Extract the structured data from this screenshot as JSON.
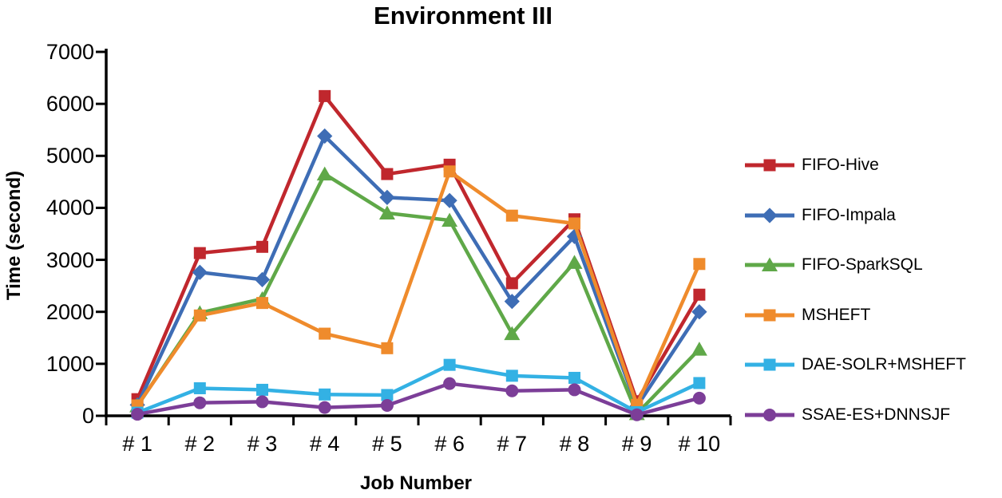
{
  "chart_data": {
    "type": "line",
    "title": "Environment III",
    "xlabel": "Job Number",
    "ylabel": "Time (second)",
    "categories": [
      "# 1",
      "# 2",
      "# 3",
      "# 4",
      "# 5",
      "# 6",
      "# 7",
      "# 8",
      "# 9",
      "# 10"
    ],
    "ylim": [
      0,
      7000
    ],
    "yticks": [
      0,
      1000,
      2000,
      3000,
      4000,
      5000,
      6000,
      7000
    ],
    "grid": false,
    "legend_position": "right",
    "axis_color": "#000000",
    "series": [
      {
        "name": "FIFO-Hive",
        "color": "#c0272d",
        "marker": "square",
        "values": [
          320,
          3130,
          3250,
          6150,
          4650,
          4830,
          2550,
          3780,
          280,
          2330
        ]
      },
      {
        "name": "FIFO-Impala",
        "color": "#3e6db5",
        "marker": "diamond",
        "values": [
          210,
          2760,
          2620,
          5380,
          4200,
          4140,
          2200,
          3450,
          180,
          2000
        ]
      },
      {
        "name": "FIFO-SparkSQL",
        "color": "#5fa848",
        "marker": "triangle",
        "values": [
          190,
          1980,
          2250,
          4650,
          3900,
          3760,
          1580,
          2950,
          40,
          1280
        ]
      },
      {
        "name": "MSHEFT",
        "color": "#ef8b2c",
        "marker": "square",
        "values": [
          200,
          1930,
          2170,
          1580,
          1300,
          4700,
          3850,
          3700,
          210,
          2920
        ]
      },
      {
        "name": "DAE-SOLR+MSHEFT",
        "color": "#33b1e4",
        "marker": "square",
        "values": [
          60,
          530,
          500,
          410,
          400,
          980,
          770,
          730,
          70,
          630
        ]
      },
      {
        "name": "SSAE-ES+DNNSJF",
        "color": "#7c3e98",
        "marker": "circle",
        "values": [
          30,
          250,
          270,
          160,
          200,
          620,
          480,
          500,
          20,
          340
        ]
      }
    ]
  }
}
